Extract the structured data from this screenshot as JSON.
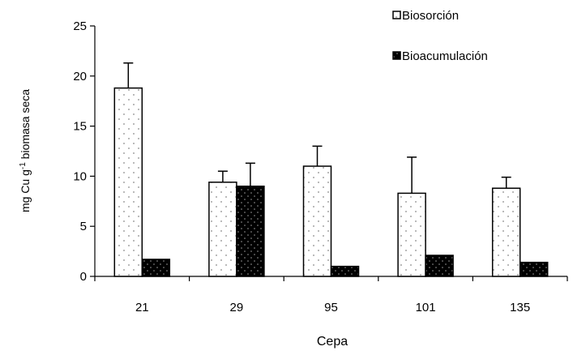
{
  "chart_data": {
    "type": "bar",
    "categories": [
      "21",
      "29",
      "95",
      "101",
      "135"
    ],
    "series": [
      {
        "name": "Biosorción",
        "values": [
          18.8,
          9.4,
          11.0,
          8.3,
          8.8
        ],
        "errors": [
          2.5,
          1.1,
          2.0,
          3.6,
          1.1
        ],
        "fill": "#ffffff",
        "dots": "#8a8a8a"
      },
      {
        "name": "Bioacumulación",
        "values": [
          1.7,
          9.0,
          1.0,
          2.1,
          1.4
        ],
        "errors": [
          0.0,
          2.3,
          0.0,
          0.0,
          0.0
        ],
        "fill": "#000000",
        "dots": "#9a9a9a"
      }
    ],
    "xlabel": "Cepa",
    "ylabel_prefix": "mg Cu g",
    "ylabel_exponent": "-1",
    "ylabel_suffix": " biomasa  seca",
    "ylim": [
      0,
      25
    ],
    "yticks": [
      "0",
      "5",
      "10",
      "15",
      "20",
      "25"
    ],
    "grid": false,
    "legend_position": "top-right"
  }
}
